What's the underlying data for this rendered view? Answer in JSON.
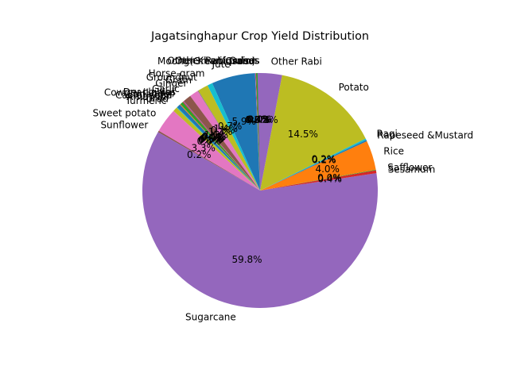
{
  "chart_data": {
    "type": "pie",
    "title": "Jagatsinghapur Crop Yield Distribution",
    "start_angle_deg": 90,
    "direction": "counterclockwise",
    "slices": [
      {
        "label": "Other Rabi pulses",
        "value": 0.0,
        "color": "#1f77b4"
      },
      {
        "label": "Other Kharif pulses",
        "value": 0.0,
        "color": "#ff7f0e"
      },
      {
        "label": "Onion",
        "value": 0.4,
        "color": "#2ca02c"
      },
      {
        "label": "Moong(Green Gram)",
        "value": 0.0,
        "color": "#d62728"
      },
      {
        "label": "Linseed",
        "value": 0.0,
        "color": "#9467bd"
      },
      {
        "label": "Jute",
        "value": 5.9,
        "color": "#1f77b4"
      },
      {
        "label": "Horse-gram",
        "value": 0.7,
        "color": "#17becf"
      },
      {
        "label": "Groundnut",
        "value": 1.4,
        "color": "#bcbd22"
      },
      {
        "label": "Gram",
        "value": 0.1,
        "color": "#7f7f7f"
      },
      {
        "label": "Ginger",
        "value": 1.2,
        "color": "#e377c2"
      },
      {
        "label": "Garlic",
        "value": 1.1,
        "color": "#8c564b"
      },
      {
        "label": "Dry chillies",
        "value": 0.1,
        "color": "#9467bd"
      },
      {
        "label": "Cowpea(Lobia)",
        "value": 0.1,
        "color": "#d62728"
      },
      {
        "label": "Coriander",
        "value": 0.4,
        "color": "#2ca02c"
      },
      {
        "label": "Castor seed",
        "value": 0.1,
        "color": "#ff7f0e"
      },
      {
        "label": "Arhar/Tur",
        "value": 0.5,
        "color": "#1f77b4"
      },
      {
        "label": "Urad",
        "value": 0.1,
        "color": "#17becf"
      },
      {
        "label": "Turmeric",
        "value": 0.6,
        "color": "#bcbd22"
      },
      {
        "label": "Sweet potato",
        "value": 3.3,
        "color": "#e377c2"
      },
      {
        "label": "Sunflower",
        "value": 0.2,
        "color": "#8c564b"
      },
      {
        "label": "Sugarcane",
        "value": 59.8,
        "color": "#9467bd"
      },
      {
        "label": "Sesamum",
        "value": 0.4,
        "color": "#d62728"
      },
      {
        "label": "Safflower",
        "value": 0.0,
        "color": "#2ca02c"
      },
      {
        "label": "Rice",
        "value": 4.0,
        "color": "#ff7f0e"
      },
      {
        "label": "Rapeseed &Mustard",
        "value": 0.2,
        "color": "#1f77b4"
      },
      {
        "label": "Ragi",
        "value": 0.2,
        "color": "#17becf"
      },
      {
        "label": "Potato",
        "value": 14.5,
        "color": "#bcbd22"
      },
      {
        "label": "Other Rabi",
        "value": 3.3,
        "color": "#9467bd"
      }
    ],
    "pct_labels": [
      "0.0%",
      "0.0%",
      "0.4%",
      "0.0%",
      "0.0%",
      "5.9%",
      "0.7%",
      "1.4%",
      "0.1%",
      "1.2%",
      "1.1%",
      "0.1%",
      "0.1%",
      "0.4%",
      "0.1%",
      "0.5%",
      "0.1%",
      "0.6%",
      "3.3%",
      "0.2%",
      "59.8%",
      "0.4%",
      "0.0%",
      "4.0%",
      "0.2%",
      "0.2%",
      "14.5%",
      "3.3%"
    ]
  }
}
